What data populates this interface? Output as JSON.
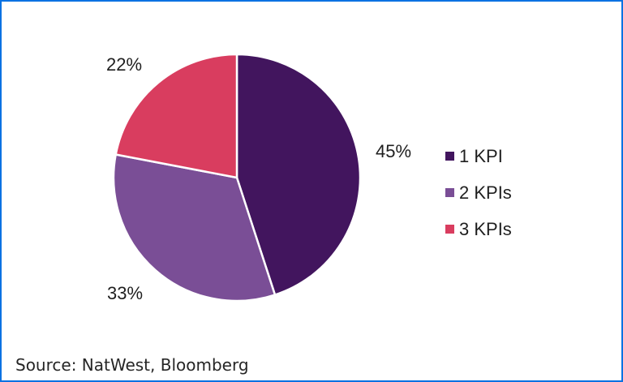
{
  "chart_data": {
    "type": "pie",
    "direction": "clockwise",
    "start_angle_deg": 0,
    "legend_position": "right",
    "slice_border_color": "#FFFFFF",
    "slices": [
      {
        "label": "1 KPI",
        "value": 45,
        "pct_label": "45%",
        "color": "#42155E"
      },
      {
        "label": "2 KPIs",
        "value": 33,
        "pct_label": "33%",
        "color": "#7A4E96"
      },
      {
        "label": "3 KPIs",
        "value": 22,
        "pct_label": "22%",
        "color": "#D93D5F"
      }
    ]
  },
  "frame": {
    "border_color": "#0A72E2"
  },
  "footer": {
    "source": "Source: NatWest, Bloomberg"
  }
}
